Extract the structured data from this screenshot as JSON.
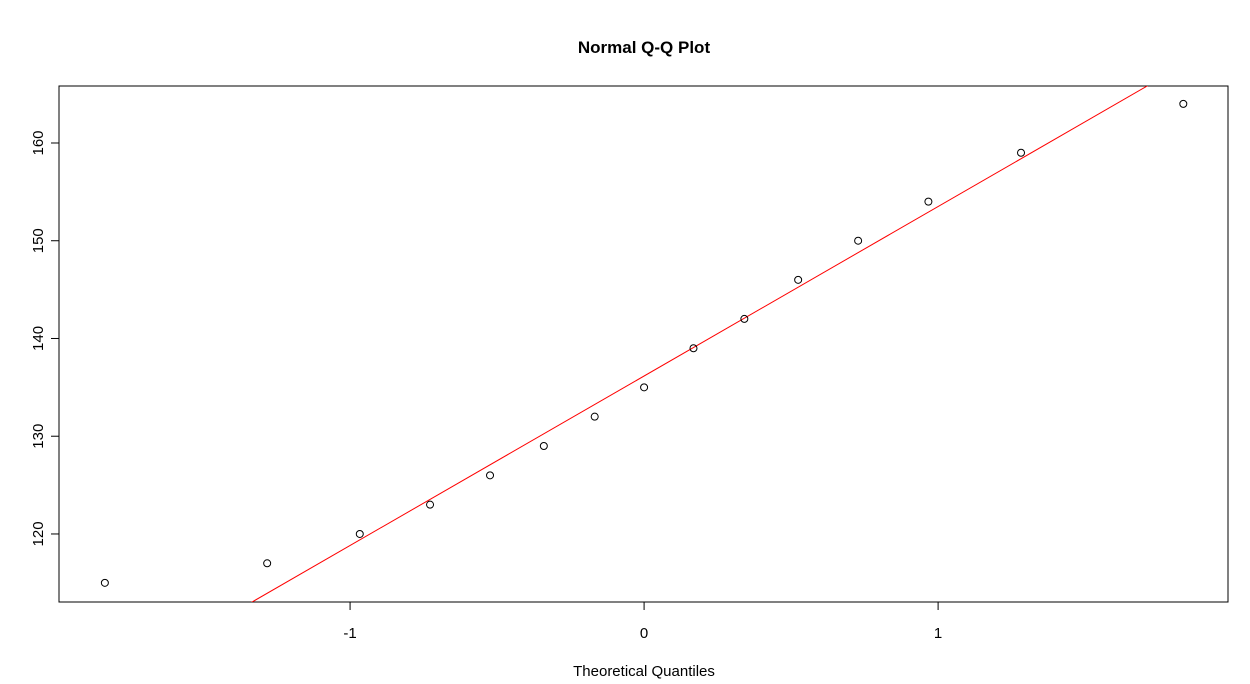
{
  "chart_data": {
    "type": "scatter",
    "title": "Normal Q-Q Plot",
    "x_label": "Theoretical Quantiles",
    "x": [
      -1.834,
      -1.282,
      -0.967,
      -0.728,
      -0.524,
      -0.341,
      -0.168,
      0,
      0.168,
      0.341,
      0.524,
      0.728,
      0.967,
      1.282,
      1.834
    ],
    "values": [
      115,
      117,
      120,
      123,
      126,
      129,
      132,
      135,
      139,
      142,
      146,
      150,
      154,
      159,
      164
    ],
    "color": "#000000",
    "line": {
      "intercept": 136.16,
      "slope": 17.34,
      "color": "#ff0000"
    },
    "xlim": [
      -1.99,
      1.986
    ],
    "ylim": [
      113.04,
      165.83
    ],
    "xticks": [
      -1,
      0,
      1
    ],
    "yticks": [
      120,
      130,
      140,
      150,
      160
    ]
  }
}
